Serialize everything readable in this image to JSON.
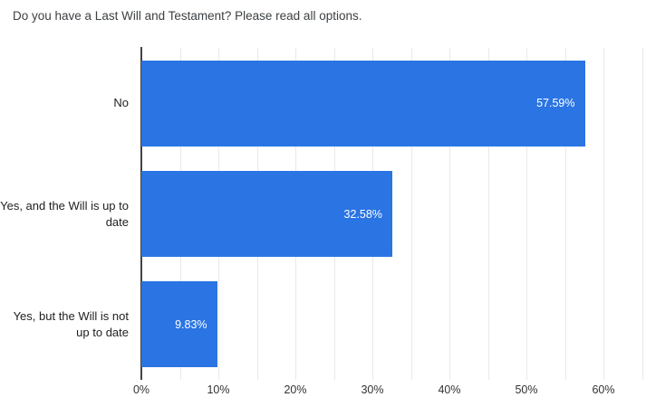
{
  "chart_data": {
    "type": "bar",
    "orientation": "horizontal",
    "title": "Do you have a Last Will and Testament? Please read all options.",
    "categories": [
      "No",
      "Yes, and the Will is up to date",
      "Yes, but the Will is not up to date"
    ],
    "values": [
      57.59,
      32.58,
      9.83
    ],
    "value_labels": [
      "57.59%",
      "32.58%",
      "9.83%"
    ],
    "x_ticks": [
      "0%",
      "10%",
      "20%",
      "30%",
      "40%",
      "50%",
      "60%"
    ],
    "x_tick_values": [
      0,
      10,
      20,
      30,
      40,
      50,
      60
    ],
    "xlim": [
      0,
      65.5
    ],
    "grid": "vertical gridlines every 5%",
    "legend": "none",
    "bar_color": "#2a74e4",
    "value_label_color": "#ffffff",
    "xlabel": "",
    "ylabel": ""
  }
}
